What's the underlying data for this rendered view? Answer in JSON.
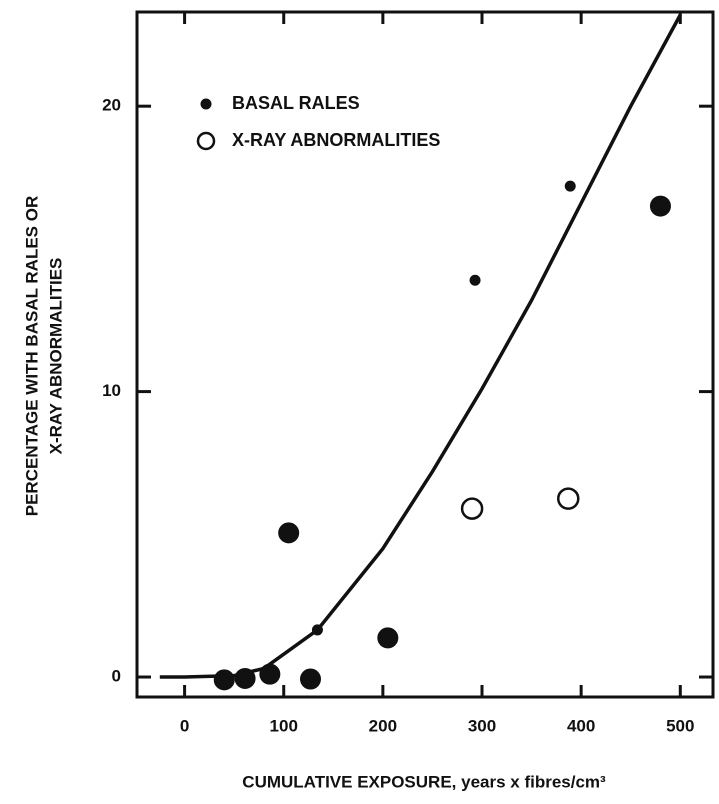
{
  "chart_data": {
    "type": "scatter",
    "x_label": "CUMULATIVE EXPOSURE, years x fibres/cm³",
    "y_label": [
      "PERCENTAGE WITH BASAL RALES OR",
      "X-RAY ABNORMALITIES"
    ],
    "xlim": [
      -48,
      533
    ],
    "ylim": [
      -0.7,
      23.3
    ],
    "xticks": [
      0,
      100,
      200,
      300,
      400,
      500
    ],
    "yticks": [
      0,
      10,
      20
    ],
    "legend": "upper left",
    "series": [
      {
        "name": "BASAL RALES",
        "color": "#111111",
        "fill": "filled",
        "x": [
          40,
          61,
          86,
          105,
          127,
          205,
          480,
          134,
          293,
          389
        ],
        "values": [
          -0.1,
          -0.05,
          0.1,
          5.05,
          -0.07,
          1.37,
          16.5,
          1.65,
          13.9,
          17.2
        ],
        "marker": [
          "large",
          "large",
          "large",
          "large",
          "large",
          "large",
          "large",
          "small",
          "small",
          "small"
        ]
      },
      {
        "name": "X-RAY ABNORMALITIES",
        "color": "#111111",
        "fill": "open",
        "x": [
          290,
          387
        ],
        "values": [
          5.9,
          6.25
        ],
        "marker": [
          "large",
          "large"
        ]
      },
      {
        "type": "line",
        "color": "#111111",
        "x": [
          -25,
          0,
          50,
          80,
          100,
          134,
          200,
          250,
          300,
          350,
          400,
          450,
          500
        ],
        "values": [
          0,
          0,
          0.05,
          0.3,
          0.8,
          1.65,
          4.5,
          7.2,
          10.1,
          13.2,
          16.6,
          20,
          23.2
        ]
      }
    ]
  }
}
